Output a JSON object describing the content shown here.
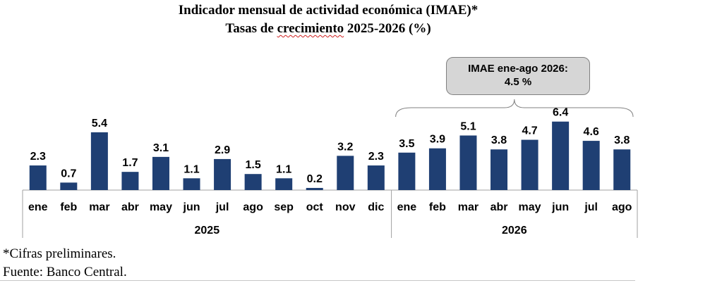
{
  "title_line1": "Indicador mensual de actividad económica (IMAE)*",
  "title_line2_a": "Tasas de",
  "title_line2_b": "crecimiento",
  "title_line2_c": "2025-2026 (%)",
  "callout": {
    "line1": "IMAE ene-ago 2026:",
    "line2": "4.5 %"
  },
  "footnotes": [
    "*Cifras preliminares.",
    "Fuente: Banco Central."
  ],
  "colors": {
    "bar": "#1f3f73",
    "axis": "#a0a0a0"
  },
  "chart_data": {
    "type": "bar",
    "title": "Indicador mensual de actividad económica (IMAE)* Tasas de crecimiento 2025-2026 (%)",
    "categories": [
      "ene",
      "feb",
      "mar",
      "abr",
      "may",
      "jun",
      "jul",
      "ago",
      "sep",
      "oct",
      "nov",
      "dic",
      "ene",
      "feb",
      "mar",
      "abr",
      "may",
      "jun",
      "jul",
      "ago"
    ],
    "values": [
      2.3,
      0.7,
      5.4,
      1.7,
      3.1,
      1.1,
      2.9,
      1.5,
      1.1,
      0.2,
      3.2,
      2.3,
      3.5,
      3.9,
      5.1,
      3.8,
      4.7,
      6.4,
      4.6,
      3.8
    ],
    "groups": [
      {
        "label": "2025",
        "count": 12
      },
      {
        "label": "2026",
        "count": 8
      }
    ],
    "data_labels": true,
    "ylim": [
      0,
      7
    ],
    "grid": false,
    "legend": "none"
  }
}
